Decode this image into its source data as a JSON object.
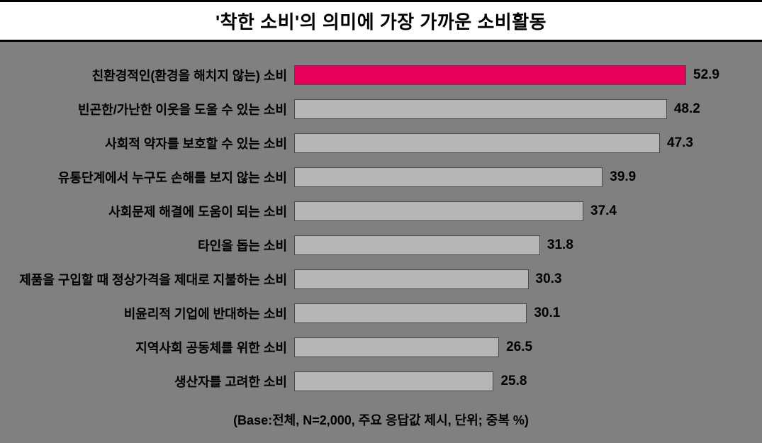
{
  "chart": {
    "type": "bar-horizontal",
    "title": "'착한 소비'의 의미에 가장 가까운 소비활동",
    "title_fontsize": 26,
    "title_bg": "#ffffff",
    "title_border_color": "#000000",
    "background_color": "#808080",
    "bar_default_color": "#b5b5b5",
    "bar_highlight_color": "#e6005c",
    "bar_border_color": "#4a4a4a",
    "label_fontsize": 18,
    "value_fontsize": 19,
    "text_color": "#000000",
    "max_value": 55,
    "rows": [
      {
        "label": "친환경적인(환경을 해치지 않는) 소비",
        "value": 52.9,
        "highlight": true
      },
      {
        "label": "빈곤한/가난한 이웃을 도울 수 있는 소비",
        "value": 48.2,
        "highlight": false
      },
      {
        "label": "사회적 약자를 보호할 수 있는 소비",
        "value": 47.3,
        "highlight": false
      },
      {
        "label": "유통단계에서 누구도 손해를 보지 않는 소비",
        "value": 39.9,
        "highlight": false
      },
      {
        "label": "사회문제 해결에 도움이 되는 소비",
        "value": 37.4,
        "highlight": false
      },
      {
        "label": "타인을 돕는 소비",
        "value": 31.8,
        "highlight": false
      },
      {
        "label": "제품을 구입할 때 정상가격을 제대로 지불하는 소비",
        "value": 30.3,
        "highlight": false
      },
      {
        "label": "비윤리적 기업에 반대하는 소비",
        "value": 30.1,
        "highlight": false
      },
      {
        "label": "지역사회 공동체를 위한 소비",
        "value": 26.5,
        "highlight": false
      },
      {
        "label": "생산자를 고려한 소비",
        "value": 25.8,
        "highlight": false
      }
    ],
    "footer": "(Base:전체, N=2,000, 주요 응답값 제시, 단위; 중복 %)"
  }
}
